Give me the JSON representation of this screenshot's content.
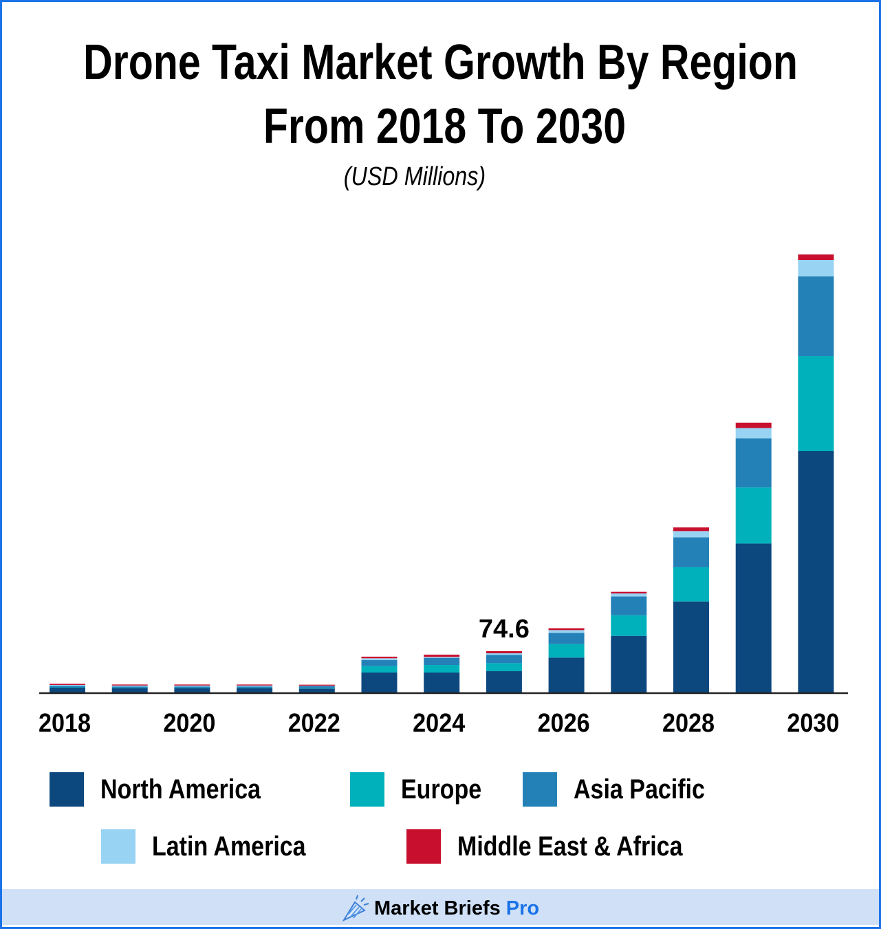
{
  "chart_data": {
    "type": "bar",
    "stacked": true,
    "title": "Drone Taxi Market Growth By Region",
    "title_line2": "From 2018 To 2030",
    "subtitle": "(USD Millions)",
    "xlabel": "",
    "ylabel": "",
    "categories": [
      "2018",
      "2019",
      "2020",
      "2021",
      "2022",
      "2023",
      "2024",
      "2025",
      "2026",
      "2027",
      "2028",
      "2029",
      "2030"
    ],
    "tick_labels": [
      "2018",
      "2020",
      "2022",
      "2024",
      "2026",
      "2028",
      "2030"
    ],
    "grid": false,
    "legend_position": "bottom",
    "series": [
      {
        "name": "North America",
        "color": "#0c487e",
        "values": [
          8.7,
          7.5,
          7.5,
          7.5,
          7.0,
          36.0,
          36.0,
          38.5,
          62.9,
          102.3,
          164.5,
          269.2,
          436.3
        ]
      },
      {
        "name": "Europe",
        "color": "#00b1bb",
        "values": [
          0.6,
          0.6,
          0.6,
          0.6,
          0.6,
          11.6,
          13.7,
          14.5,
          24.5,
          37.3,
          61.8,
          101.6,
          171.5
        ]
      },
      {
        "name": "Asia Pacific",
        "color": "#2481b8",
        "values": [
          2.5,
          2.5,
          2.5,
          2.5,
          4.0,
          10.8,
          12.8,
          14.9,
          20.3,
          33.9,
          54.2,
          88.6,
          144.2
        ]
      },
      {
        "name": "Latin America",
        "color": "#98d3f3",
        "values": [
          1.9,
          1.9,
          1.9,
          1.9,
          0.6,
          3.4,
          1.7,
          2.9,
          5.0,
          5.5,
          11.2,
          18.6,
          29.8
        ]
      },
      {
        "name": "Middle East & Africa",
        "color": "#c8102e",
        "values": [
          1.9,
          1.9,
          1.9,
          1.9,
          1.9,
          2.9,
          4.1,
          3.8,
          3.4,
          2.9,
          6.7,
          9.6,
          9.9
        ]
      }
    ],
    "annotations": [
      {
        "category": "2025",
        "text": "74.6"
      }
    ]
  },
  "footer": {
    "brand_main": "Market Briefs",
    "brand_accent": "Pro",
    "brand_accent_color": "#1a73e8",
    "logo_icon": "megaphone-icon"
  }
}
